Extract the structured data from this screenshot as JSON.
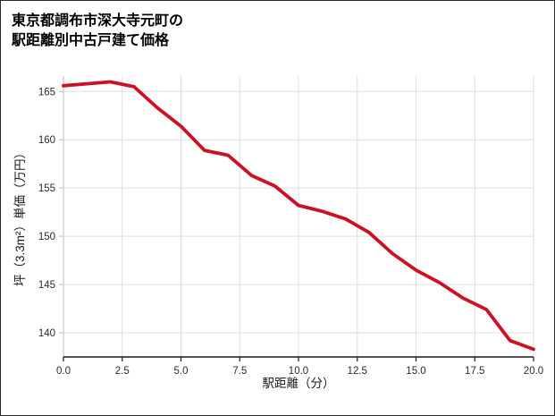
{
  "header": {
    "title_line1": "東京都調布市深大寺元町の",
    "title_line2": "駅距離別中古戸建て価格"
  },
  "chart_data": {
    "type": "line",
    "title": "東京都調布市深大寺元町の駅距離別中古戸建て価格",
    "xlabel": "駅距離（分）",
    "ylabel": "坪（3.3m²）単価（万円）",
    "x": [
      0,
      1,
      2,
      3,
      4,
      5,
      6,
      7,
      8,
      9,
      10,
      11,
      12,
      13,
      14,
      15,
      16,
      17,
      18,
      19,
      20
    ],
    "y": [
      165.6,
      165.8,
      166.0,
      165.5,
      163.3,
      161.4,
      158.9,
      158.4,
      156.3,
      155.2,
      153.2,
      152.6,
      151.8,
      150.4,
      148.2,
      146.5,
      145.2,
      143.6,
      142.4,
      139.2,
      138.3
    ],
    "xlim": [
      0,
      20
    ],
    "ylim": [
      137.5,
      166.6
    ],
    "xticks": [
      0,
      2.5,
      5,
      7.5,
      10,
      12.5,
      15,
      17.5,
      20
    ],
    "xtick_labels": [
      "0.0",
      "2.5",
      "5.0",
      "7.5",
      "10.0",
      "12.5",
      "15.0",
      "17.5",
      "20.0"
    ],
    "yticks": [
      140,
      145,
      150,
      155,
      160,
      165
    ],
    "ytick_labels": [
      "140",
      "145",
      "150",
      "155",
      "160",
      "165"
    ],
    "grid": true,
    "legend": "none",
    "line_color": "#cc1122",
    "grid_color": "#dddddd",
    "bottom_spine_color": "#1a1a1a",
    "left_spine_color": "#c8c8c8"
  }
}
